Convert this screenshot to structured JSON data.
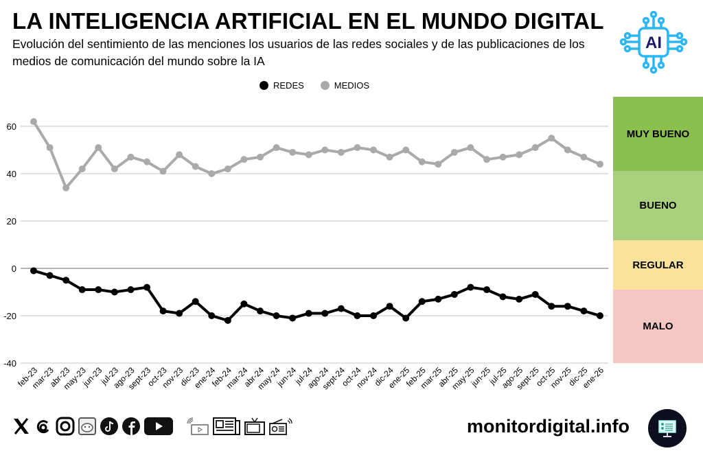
{
  "header": {
    "title": "LA INTELIGENCIA ARTIFICIAL EN EL MUNDO DIGITAL",
    "subtitle": "Evolución del sentimiento de las menciones los usuarios de las redes sociales y de las publicaciones de los medios de comunicación del mundo sobre la IA",
    "logo_text": "AI",
    "logo_icon": "ai-chip-icon"
  },
  "colors": {
    "redes": "#000000",
    "medios": "#aaaaaa",
    "logo_blue": "#29b6f6",
    "logo_navy": "#1a1a6e"
  },
  "sentiment_bands": [
    {
      "label": "MUY BUENO",
      "color": "#8bc04f"
    },
    {
      "label": "BUENO",
      "color": "#a8d07d"
    },
    {
      "label": "REGULAR",
      "color": "#fae29b"
    },
    {
      "label": "MALO",
      "color": "#f4c6c4"
    }
  ],
  "chart_data": {
    "type": "line",
    "title": "LA INTELIGENCIA ARTIFICIAL EN EL MUNDO DIGITAL",
    "xlabel": "",
    "ylabel": "",
    "ylim": [
      -40,
      70
    ],
    "yticks": [
      60,
      40,
      20,
      0,
      -20,
      -40
    ],
    "grid": true,
    "legend": "top-center",
    "categories": [
      "feb-23",
      "mar-23",
      "abr-23",
      "may-23",
      "jun-23",
      "jul-23",
      "ago-23",
      "sept-23",
      "oct-23",
      "nov-23",
      "dic-23",
      "ene-24",
      "feb-24",
      "mar-24",
      "abr-24",
      "may-24",
      "jun-24",
      "jul-24",
      "ago-24",
      "sept-24",
      "oct-24",
      "nov-24",
      "dic-24",
      "ene-25",
      "feb-25",
      "mar-25",
      "abr-25",
      "may-25",
      "jun-25",
      "jul-25",
      "ago-25",
      "sept-25",
      "oct-25",
      "nov-25",
      "dic-25",
      "ene-26"
    ],
    "series": [
      {
        "name": "REDES",
        "color": "#000000",
        "values": [
          -1,
          -3,
          -5,
          -9,
          -9,
          -10,
          -9,
          -8,
          -18,
          -19,
          -14,
          -20,
          -22,
          -15,
          -18,
          -20,
          -21,
          -19,
          -19,
          -17,
          -20,
          -20,
          -16,
          -21,
          -14,
          -13,
          -11,
          -8,
          -9,
          -12,
          -13,
          -11,
          -16,
          -16,
          -18,
          -20
        ]
      },
      {
        "name": "MEDIOS",
        "color": "#aaaaaa",
        "values": [
          62,
          51,
          34,
          42,
          51,
          42,
          47,
          45,
          41,
          48,
          43,
          40,
          42,
          46,
          47,
          51,
          49,
          48,
          50,
          49,
          51,
          50,
          47,
          50,
          45,
          44,
          49,
          51,
          46,
          47,
          48,
          51,
          55,
          50,
          47,
          44
        ]
      }
    ]
  },
  "footer": {
    "social_icons": [
      "x-icon",
      "threads-icon",
      "instagram-icon",
      "reddit-icon",
      "tiktok-icon",
      "facebook-icon",
      "youtube-icon"
    ],
    "media_icons": [
      "digital-media-icon",
      "newspaper-icon",
      "tv-icon",
      "radio-icon"
    ],
    "site": "monitordigital.info",
    "site_logo": "monitor-icon"
  }
}
